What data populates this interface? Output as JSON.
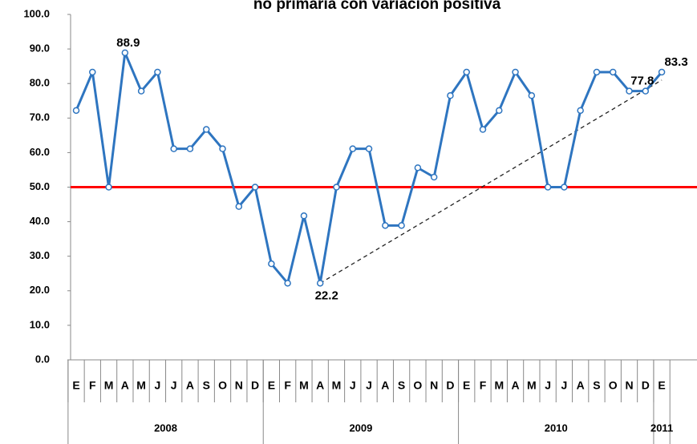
{
  "chart_data": {
    "type": "line",
    "title": "no primaria con variación positiva",
    "categories": [
      "E",
      "F",
      "M",
      "A",
      "M",
      "J",
      "J",
      "A",
      "S",
      "O",
      "N",
      "D",
      "E",
      "F",
      "M",
      "A",
      "M",
      "J",
      "J",
      "A",
      "S",
      "O",
      "N",
      "D",
      "E",
      "F",
      "M",
      "A",
      "M",
      "J",
      "J",
      "A",
      "S",
      "O",
      "N",
      "D",
      "E"
    ],
    "groups": [
      {
        "label": "2008",
        "count": 12
      },
      {
        "label": "2009",
        "count": 12
      },
      {
        "label": "2010",
        "count": 12
      },
      {
        "label": "2011",
        "count": 1
      }
    ],
    "series": [
      {
        "color": "#2e75c0",
        "values": [
          72.2,
          83.3,
          50,
          88.9,
          77.8,
          83.3,
          61.1,
          61.1,
          66.7,
          61.1,
          44.4,
          50,
          27.8,
          22.2,
          41.7,
          22.2,
          50,
          61.1,
          61.1,
          38.9,
          38.9,
          55.6,
          52.9,
          76.5,
          83.3,
          66.7,
          72.2,
          83.3,
          76.5,
          50,
          50,
          72.2,
          83.3,
          83.3,
          77.8,
          77.8,
          83.3
        ],
        "value_labels": [
          null,
          null,
          null,
          "88.9",
          null,
          null,
          null,
          null,
          null,
          null,
          null,
          null,
          null,
          null,
          null,
          "22.2",
          null,
          null,
          null,
          null,
          null,
          null,
          null,
          null,
          null,
          null,
          null,
          null,
          null,
          null,
          null,
          null,
          null,
          null,
          null,
          "77.8",
          "83.3"
        ]
      }
    ],
    "trend_values": [
      null,
      null,
      null,
      null,
      null,
      null,
      null,
      null,
      null,
      null,
      null,
      null,
      null,
      null,
      null,
      22.2,
      null,
      null,
      null,
      null,
      null,
      null,
      null,
      null,
      null,
      null,
      null,
      null,
      null,
      null,
      null,
      null,
      null,
      null,
      null,
      null,
      81
    ],
    "reference_line": {
      "value": 50,
      "color": "#ff0000"
    },
    "ylim": [
      0,
      100
    ],
    "yticks": [
      {
        "value": 0,
        "label": "0.0"
      },
      {
        "value": 10,
        "label": "10.0"
      },
      {
        "value": 20,
        "label": "20.0"
      },
      {
        "value": 30,
        "label": "30.0"
      },
      {
        "value": 40,
        "label": "40.0"
      },
      {
        "value": 50,
        "label": "50.0"
      },
      {
        "value": 60,
        "label": "60.0"
      },
      {
        "value": 70,
        "label": "70.0"
      },
      {
        "value": 80,
        "label": "80.0"
      },
      {
        "value": 90,
        "label": "90.0"
      },
      {
        "value": 100,
        "label": "100.0"
      }
    ]
  }
}
